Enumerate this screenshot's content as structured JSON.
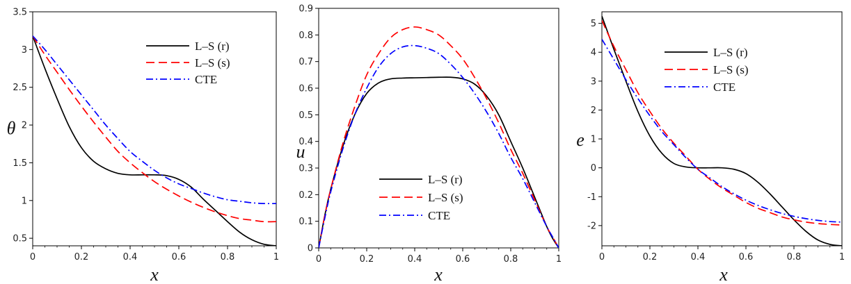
{
  "chart_data": [
    {
      "type": "line",
      "xlabel": "x",
      "ylabel": "θ",
      "xlim": [
        0,
        1
      ],
      "ylim": [
        0.4,
        3.5
      ],
      "xticks": [
        0,
        0.2,
        0.4,
        0.6,
        0.8,
        1
      ],
      "xtick_labels": [
        "0",
        "0.2",
        "0.4",
        "0.6",
        "0.8",
        "1"
      ],
      "yticks": [
        0.5,
        1,
        1.5,
        2,
        2.5,
        3,
        3.5
      ],
      "ytick_labels": [
        "0.5",
        "1",
        "1.5",
        "2",
        "2.5",
        "3",
        "3.5"
      ],
      "legend": "top-right",
      "series": [
        {
          "name": "L–S (r)",
          "color": "#000000",
          "dash": "solid",
          "x": [
            0,
            0.05,
            0.1,
            0.15,
            0.2,
            0.25,
            0.3,
            0.35,
            0.4,
            0.45,
            0.5,
            0.55,
            0.6,
            0.65,
            0.7,
            0.75,
            0.8,
            0.85,
            0.9,
            0.95,
            1.0
          ],
          "y": [
            3.18,
            2.75,
            2.35,
            1.98,
            1.7,
            1.52,
            1.42,
            1.36,
            1.34,
            1.34,
            1.34,
            1.33,
            1.28,
            1.18,
            1.02,
            0.87,
            0.72,
            0.58,
            0.48,
            0.42,
            0.4
          ]
        },
        {
          "name": "L–S (s)",
          "color": "#ff0000",
          "dash": "dashed",
          "x": [
            0,
            0.05,
            0.1,
            0.15,
            0.2,
            0.25,
            0.3,
            0.35,
            0.4,
            0.45,
            0.5,
            0.55,
            0.6,
            0.65,
            0.7,
            0.75,
            0.8,
            0.85,
            0.9,
            0.95,
            1.0
          ],
          "y": [
            3.18,
            2.93,
            2.7,
            2.47,
            2.25,
            2.04,
            1.84,
            1.65,
            1.5,
            1.37,
            1.25,
            1.15,
            1.06,
            0.98,
            0.91,
            0.85,
            0.8,
            0.76,
            0.74,
            0.72,
            0.72
          ]
        },
        {
          "name": "CTE",
          "color": "#0000ff",
          "dash": "dashdot",
          "x": [
            0,
            0.05,
            0.1,
            0.15,
            0.2,
            0.25,
            0.3,
            0.35,
            0.4,
            0.45,
            0.5,
            0.55,
            0.6,
            0.65,
            0.7,
            0.75,
            0.8,
            0.85,
            0.9,
            0.95,
            1.0
          ],
          "y": [
            3.18,
            3.0,
            2.8,
            2.6,
            2.4,
            2.2,
            2.0,
            1.82,
            1.65,
            1.52,
            1.4,
            1.3,
            1.22,
            1.16,
            1.1,
            1.05,
            1.01,
            0.99,
            0.97,
            0.96,
            0.96
          ]
        }
      ]
    },
    {
      "type": "line",
      "xlabel": "x",
      "ylabel": "u",
      "xlim": [
        0,
        1
      ],
      "ylim": [
        0,
        0.9
      ],
      "xticks": [
        0,
        0.2,
        0.4,
        0.6,
        0.8,
        1
      ],
      "xtick_labels": [
        "0",
        "0.2",
        "0.4",
        "0.6",
        "0.8",
        "1"
      ],
      "yticks": [
        0,
        0.1,
        0.2,
        0.3,
        0.4,
        0.5,
        0.6,
        0.7,
        0.8,
        0.9
      ],
      "ytick_labels": [
        "0",
        "0.1",
        "0.2",
        "0.3",
        "0.4",
        "0.5",
        "0.6",
        "0.7",
        "0.8",
        "0.9"
      ],
      "legend": "bottom-center",
      "series": [
        {
          "name": "L–S (r)",
          "color": "#000000",
          "dash": "solid",
          "x": [
            0,
            0.025,
            0.05,
            0.1,
            0.15,
            0.2,
            0.25,
            0.3,
            0.35,
            0.4,
            0.45,
            0.5,
            0.55,
            0.6,
            0.65,
            0.7,
            0.75,
            0.8,
            0.85,
            0.9,
            0.95,
            0.975,
            1.0
          ],
          "y": [
            0,
            0.12,
            0.22,
            0.38,
            0.5,
            0.58,
            0.62,
            0.635,
            0.638,
            0.639,
            0.64,
            0.641,
            0.641,
            0.635,
            0.615,
            0.57,
            0.5,
            0.4,
            0.3,
            0.19,
            0.08,
            0.035,
            0
          ]
        },
        {
          "name": "L–S (s)",
          "color": "#ff0000",
          "dash": "dashed",
          "x": [
            0,
            0.025,
            0.05,
            0.1,
            0.15,
            0.2,
            0.25,
            0.3,
            0.35,
            0.4,
            0.45,
            0.5,
            0.55,
            0.6,
            0.65,
            0.7,
            0.75,
            0.8,
            0.85,
            0.9,
            0.95,
            0.975,
            1.0
          ],
          "y": [
            0,
            0.12,
            0.22,
            0.39,
            0.53,
            0.65,
            0.73,
            0.79,
            0.82,
            0.83,
            0.82,
            0.8,
            0.76,
            0.71,
            0.64,
            0.56,
            0.47,
            0.37,
            0.28,
            0.18,
            0.08,
            0.04,
            0
          ]
        },
        {
          "name": "CTE",
          "color": "#0000ff",
          "dash": "dashdot",
          "x": [
            0,
            0.025,
            0.05,
            0.1,
            0.15,
            0.2,
            0.25,
            0.3,
            0.35,
            0.4,
            0.45,
            0.5,
            0.55,
            0.6,
            0.65,
            0.7,
            0.75,
            0.8,
            0.85,
            0.9,
            0.95,
            0.975,
            1.0
          ],
          "y": [
            0,
            0.11,
            0.21,
            0.37,
            0.5,
            0.6,
            0.68,
            0.73,
            0.755,
            0.76,
            0.75,
            0.73,
            0.69,
            0.64,
            0.58,
            0.51,
            0.43,
            0.34,
            0.26,
            0.17,
            0.08,
            0.04,
            0
          ]
        }
      ]
    },
    {
      "type": "line",
      "xlabel": "x",
      "ylabel": "e",
      "xlim": [
        0,
        1
      ],
      "ylim": [
        -2.7,
        5.4
      ],
      "xticks": [
        0,
        0.2,
        0.4,
        0.6,
        0.8,
        1
      ],
      "xtick_labels": [
        "0",
        "0.2",
        "0.4",
        "0.6",
        "0.8",
        "1"
      ],
      "yticks": [
        -2,
        -1,
        0,
        1,
        2,
        3,
        4,
        5
      ],
      "ytick_labels": [
        "-2",
        "-1",
        "0",
        "1",
        "2",
        "3",
        "4",
        "5"
      ],
      "legend": "top-right",
      "series": [
        {
          "name": "L–S (r)",
          "color": "#000000",
          "dash": "solid",
          "x": [
            0,
            0.05,
            0.1,
            0.15,
            0.2,
            0.25,
            0.3,
            0.35,
            0.4,
            0.45,
            0.5,
            0.55,
            0.6,
            0.65,
            0.7,
            0.75,
            0.8,
            0.85,
            0.9,
            0.95,
            1.0
          ],
          "y": [
            5.25,
            4.1,
            3.0,
            1.95,
            1.1,
            0.5,
            0.15,
            0.03,
            0.0,
            0.0,
            0.0,
            -0.05,
            -0.2,
            -0.5,
            -0.9,
            -1.35,
            -1.8,
            -2.2,
            -2.5,
            -2.65,
            -2.7
          ]
        },
        {
          "name": "L–S (s)",
          "color": "#ff0000",
          "dash": "dashed",
          "x": [
            0,
            0.05,
            0.1,
            0.15,
            0.2,
            0.25,
            0.3,
            0.35,
            0.4,
            0.45,
            0.5,
            0.55,
            0.6,
            0.65,
            0.7,
            0.75,
            0.8,
            0.85,
            0.9,
            0.95,
            1.0
          ],
          "y": [
            5.1,
            4.2,
            3.4,
            2.6,
            1.95,
            1.35,
            0.85,
            0.4,
            -0.05,
            -0.4,
            -0.7,
            -0.95,
            -1.2,
            -1.4,
            -1.55,
            -1.7,
            -1.8,
            -1.88,
            -1.93,
            -1.96,
            -1.98
          ]
        },
        {
          "name": "CTE",
          "color": "#0000ff",
          "dash": "dashdot",
          "x": [
            0,
            0.05,
            0.1,
            0.15,
            0.2,
            0.25,
            0.3,
            0.35,
            0.4,
            0.45,
            0.5,
            0.55,
            0.6,
            0.65,
            0.7,
            0.75,
            0.8,
            0.85,
            0.9,
            0.95,
            1.0
          ],
          "y": [
            4.45,
            3.75,
            3.05,
            2.4,
            1.8,
            1.25,
            0.8,
            0.35,
            -0.05,
            -0.35,
            -0.65,
            -0.9,
            -1.12,
            -1.3,
            -1.45,
            -1.58,
            -1.68,
            -1.76,
            -1.82,
            -1.86,
            -1.88
          ]
        }
      ]
    }
  ]
}
